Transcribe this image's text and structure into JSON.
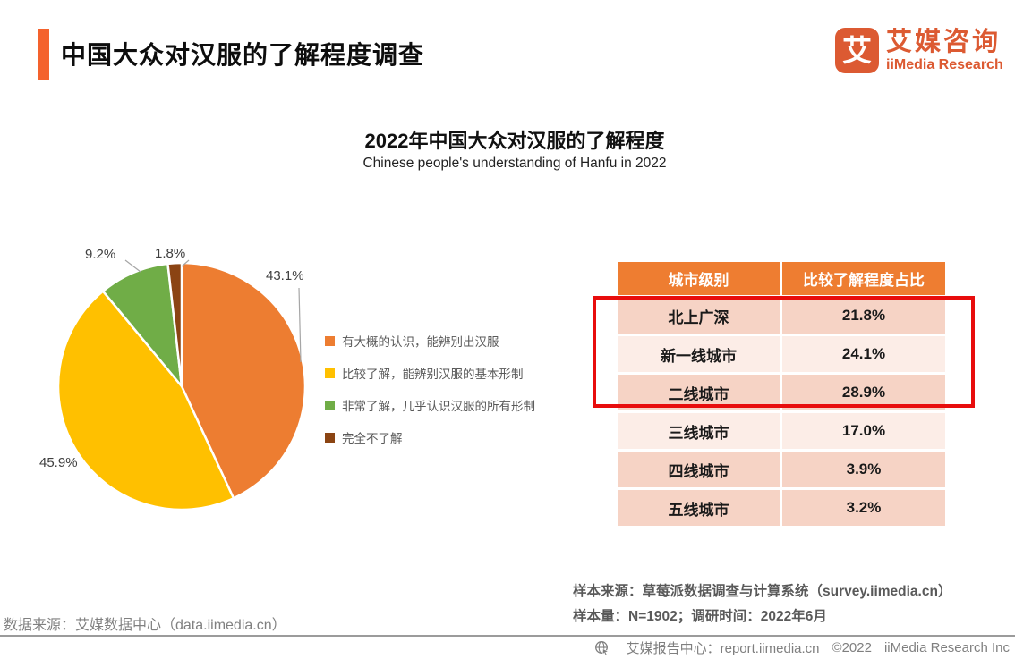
{
  "header": {
    "title": "中国大众对汉服的了解程度调查",
    "logo": {
      "icon_char": "艾",
      "name_cn": "艾媒咨询",
      "name_en": "iiMedia Research",
      "brand_color": "#DC5A32"
    },
    "accent_color": "#F4622D"
  },
  "chart": {
    "title": "2022年中国大众对汉服的了解程度",
    "subtitle": "Chinese people's understanding of Hanfu in 2022"
  },
  "chart_data": {
    "type": "pie",
    "title": "2022年中国大众对汉服的了解程度",
    "subtitle": "Chinese people's understanding of Hanfu in 2022",
    "labels": [
      "有大概的认识，能辨别出汉服",
      "比较了解，能辨别汉服的基本形制",
      "非常了解，几乎认识汉服的所有形制",
      "完全不了解"
    ],
    "values": [
      43.1,
      45.9,
      9.2,
      1.8
    ],
    "display_labels": [
      "43.1%",
      "45.9%",
      "9.2%",
      "1.8%"
    ],
    "colors": [
      "#ED7D31",
      "#FFC000",
      "#70AD47",
      "#8B4413"
    ],
    "start_angle_deg": 0,
    "direction": "clockwise",
    "legend_position": "right"
  },
  "table": {
    "headers": [
      "城市级别",
      "比较了解程度占比"
    ],
    "rows": [
      {
        "city": "北上广深",
        "value": "21.8%",
        "tone": "dark"
      },
      {
        "city": "新一线城市",
        "value": "24.1%",
        "tone": "light"
      },
      {
        "city": "二线城市",
        "value": "28.9%",
        "tone": "dark"
      },
      {
        "city": "三线城市",
        "value": "17.0%",
        "tone": "light"
      },
      {
        "city": "四线城市",
        "value": "3.9%",
        "tone": "dark"
      },
      {
        "city": "五线城市",
        "value": "3.2%",
        "tone": "dark"
      }
    ],
    "highlight_rows": [
      0,
      1,
      2
    ],
    "highlight_color": "#E80D0D",
    "header_bg": "#EE7D31",
    "row_bg_dark": "#F6D3C5",
    "row_bg_light": "#FCEDE7"
  },
  "footer": {
    "sample_source": "样本来源：草莓派数据调查与计算系统（survey.iimedia.cn）",
    "sample_info": "样本量：N=1902；调研时间：2022年6月",
    "data_source": "数据来源：艾媒数据中心（data.iimedia.cn）",
    "report_center": "艾媒报告中心：report.iimedia.cn",
    "copyright_year": "©2022",
    "copyright_owner": "iiMedia Research  Inc"
  }
}
